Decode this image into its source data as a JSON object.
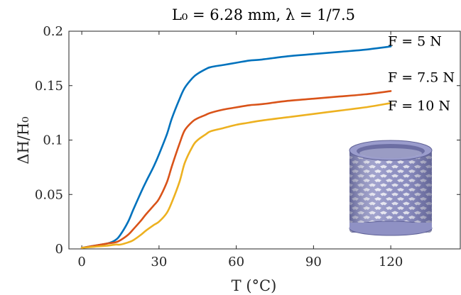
{
  "chart_data": {
    "type": "line",
    "title": "L₀ = 6.28 mm, λ = 1/7.5",
    "xlabel": "T (°C)",
    "ylabel": "ΔH/H₀",
    "xlim": [
      -5,
      147
    ],
    "ylim": [
      0,
      0.2
    ],
    "xticks": [
      0,
      30,
      60,
      90,
      120
    ],
    "xtick_labels": [
      "0",
      "30",
      "60",
      "90",
      "120"
    ],
    "yticks": [
      0,
      0.05,
      0.1,
      0.15,
      0.2
    ],
    "ytick_labels": [
      "0",
      "0.05",
      "0.1",
      "0.15",
      "0.2"
    ],
    "grid": false,
    "annotations": [
      {
        "text": "F = 5 N",
        "series": 0
      },
      {
        "text": "F = 7.5 N",
        "series": 1
      },
      {
        "text": "F = 10 N",
        "series": 2
      }
    ],
    "series": [
      {
        "label": "F = 5 N",
        "color": "#0072BD",
        "x": [
          0,
          5,
          10,
          13,
          15,
          18,
          20,
          23,
          25,
          28,
          30,
          33,
          35,
          38,
          40,
          43,
          45,
          48,
          50,
          55,
          60,
          65,
          70,
          80,
          90,
          100,
          110,
          120
        ],
        "y": [
          0.001,
          0.003,
          0.005,
          0.008,
          0.013,
          0.025,
          0.036,
          0.052,
          0.062,
          0.076,
          0.087,
          0.105,
          0.12,
          0.138,
          0.148,
          0.157,
          0.161,
          0.165,
          0.167,
          0.169,
          0.171,
          0.173,
          0.174,
          0.177,
          0.179,
          0.181,
          0.183,
          0.186
        ]
      },
      {
        "label": "F = 7.5 N",
        "color": "#D95319",
        "x": [
          0,
          5,
          10,
          13,
          15,
          18,
          20,
          23,
          25,
          28,
          30,
          33,
          35,
          38,
          40,
          43,
          45,
          48,
          50,
          55,
          60,
          65,
          70,
          80,
          90,
          100,
          110,
          120
        ],
        "y": [
          0.001,
          0.003,
          0.005,
          0.006,
          0.008,
          0.013,
          0.018,
          0.026,
          0.032,
          0.04,
          0.046,
          0.061,
          0.076,
          0.097,
          0.109,
          0.117,
          0.12,
          0.123,
          0.125,
          0.128,
          0.13,
          0.132,
          0.133,
          0.136,
          0.138,
          0.14,
          0.142,
          0.145
        ]
      },
      {
        "label": "F = 10 N",
        "color": "#EDB120",
        "x": [
          0,
          5,
          10,
          13,
          15,
          18,
          20,
          23,
          25,
          28,
          30,
          33,
          35,
          38,
          40,
          43,
          45,
          48,
          50,
          55,
          60,
          65,
          70,
          80,
          90,
          100,
          110,
          120
        ],
        "y": [
          0.001,
          0.002,
          0.003,
          0.004,
          0.004,
          0.006,
          0.008,
          0.013,
          0.017,
          0.022,
          0.025,
          0.033,
          0.043,
          0.062,
          0.079,
          0.094,
          0.1,
          0.105,
          0.108,
          0.111,
          0.114,
          0.116,
          0.118,
          0.121,
          0.124,
          0.127,
          0.13,
          0.134
        ]
      }
    ]
  },
  "inset_image": {
    "description_icon": "lattice-cylinder-icon",
    "fill_color": "#8F91C4",
    "shade_color": "#5F6196",
    "hole_color": "#E8E8F2"
  }
}
